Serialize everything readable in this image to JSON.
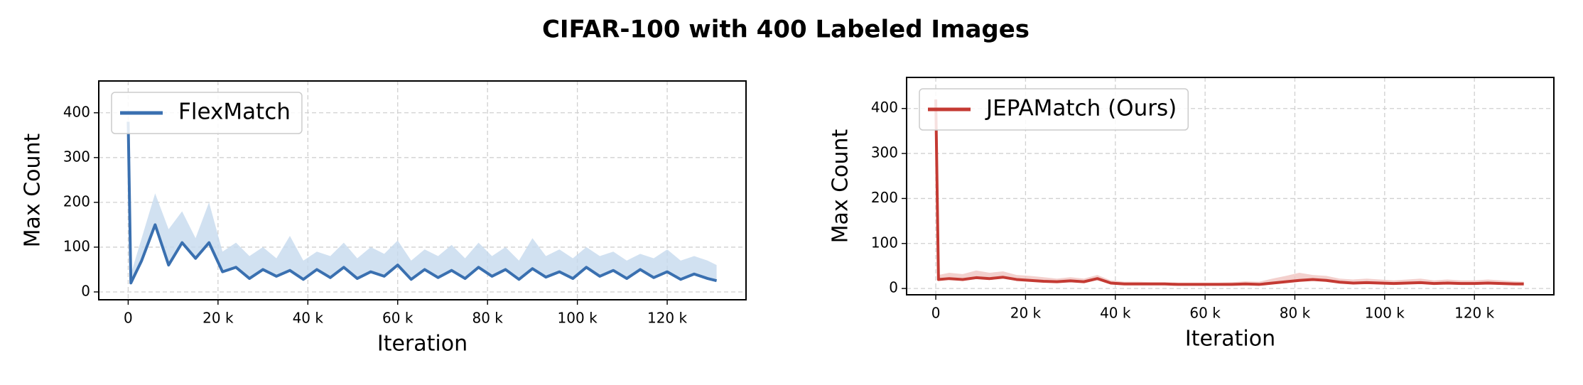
{
  "title": "CIFAR-100 with 400 Labeled Images",
  "chart_data": [
    {
      "type": "line",
      "xlabel": "Iteration",
      "ylabel": "Max Count",
      "xlim": [
        -6550,
        137550
      ],
      "ylim": [
        -17.5,
        471
      ],
      "xticks": [
        0,
        {
          "value": 20000,
          "label": "20 k"
        },
        {
          "value": 40000,
          "label": "40 k"
        },
        {
          "value": 60000,
          "label": "60 k"
        },
        {
          "value": 80000,
          "label": "80 k"
        },
        {
          "value": 100000,
          "label": "100 k"
        },
        {
          "value": 120000,
          "label": "120 k"
        }
      ],
      "yticks": [
        0,
        100,
        200,
        300,
        400
      ],
      "grid": true,
      "legend": "upper left",
      "x": [
        0,
        600,
        3000,
        6000,
        9000,
        12000,
        15000,
        18000,
        21000,
        24000,
        27000,
        30000,
        33000,
        36000,
        39000,
        42000,
        45000,
        48000,
        51000,
        54000,
        57000,
        60000,
        63000,
        66000,
        69000,
        72000,
        75000,
        78000,
        81000,
        84000,
        87000,
        90000,
        93000,
        96000,
        99000,
        102000,
        105000,
        108000,
        111000,
        114000,
        117000,
        120000,
        123000,
        126000,
        129000,
        131000
      ],
      "series": [
        {
          "name": "FlexMatch",
          "color": "#3a70b0",
          "band_color": "#c6d9ee",
          "values": [
            380,
            20,
            70,
            150,
            60,
            110,
            75,
            110,
            45,
            55,
            30,
            50,
            35,
            48,
            28,
            50,
            32,
            55,
            30,
            45,
            35,
            60,
            28,
            50,
            32,
            48,
            30,
            55,
            35,
            50,
            28,
            52,
            33,
            45,
            30,
            55,
            35,
            48,
            30,
            50,
            32,
            45,
            28,
            40,
            30,
            25
          ],
          "upper": [
            400,
            40,
            120,
            220,
            140,
            180,
            120,
            200,
            90,
            110,
            80,
            100,
            75,
            125,
            70,
            90,
            80,
            110,
            75,
            100,
            85,
            115,
            70,
            95,
            80,
            105,
            75,
            110,
            80,
            100,
            70,
            120,
            80,
            95,
            75,
            100,
            80,
            90,
            70,
            85,
            75,
            95,
            70,
            80,
            70,
            60
          ]
        }
      ]
    },
    {
      "type": "line",
      "xlabel": "Iteration",
      "ylabel": "Max Count",
      "xlim": [
        -6500,
        137700
      ],
      "ylim": [
        -14,
        469
      ],
      "xticks": [
        0,
        {
          "value": 20000,
          "label": "20 k"
        },
        {
          "value": 40000,
          "label": "40 k"
        },
        {
          "value": 60000,
          "label": "60 k"
        },
        {
          "value": 80000,
          "label": "80 k"
        },
        {
          "value": 100000,
          "label": "100 k"
        },
        {
          "value": 120000,
          "label": "120 k"
        }
      ],
      "yticks": [
        0,
        100,
        200,
        300,
        400
      ],
      "grid": true,
      "legend": "upper left",
      "x": [
        0,
        600,
        3000,
        6000,
        9000,
        12000,
        15000,
        18000,
        21000,
        24000,
        27000,
        30000,
        33000,
        36000,
        39000,
        42000,
        45000,
        48000,
        51000,
        54000,
        57000,
        60000,
        63000,
        66000,
        69000,
        72000,
        75000,
        78000,
        81000,
        84000,
        87000,
        90000,
        93000,
        96000,
        99000,
        102000,
        105000,
        108000,
        111000,
        114000,
        117000,
        120000,
        123000,
        126000,
        129000,
        131000
      ],
      "series": [
        {
          "name": "JEPAMatch (Ours)",
          "color": "#c43a33",
          "band_color": "#f0c4c0",
          "values": [
            420,
            20,
            22,
            20,
            24,
            22,
            25,
            20,
            18,
            16,
            15,
            17,
            15,
            22,
            12,
            10,
            10,
            10,
            10,
            9,
            9,
            9,
            9,
            9,
            10,
            9,
            12,
            15,
            18,
            20,
            18,
            14,
            12,
            13,
            12,
            11,
            12,
            13,
            11,
            12,
            11,
            11,
            12,
            11,
            10,
            10
          ],
          "upper": [
            440,
            30,
            35,
            32,
            40,
            35,
            38,
            30,
            28,
            25,
            22,
            25,
            22,
            30,
            18,
            15,
            15,
            14,
            14,
            13,
            13,
            13,
            13,
            14,
            16,
            15,
            22,
            28,
            35,
            30,
            28,
            22,
            20,
            22,
            20,
            18,
            20,
            22,
            18,
            20,
            18,
            18,
            20,
            18,
            16,
            15
          ]
        }
      ]
    }
  ]
}
